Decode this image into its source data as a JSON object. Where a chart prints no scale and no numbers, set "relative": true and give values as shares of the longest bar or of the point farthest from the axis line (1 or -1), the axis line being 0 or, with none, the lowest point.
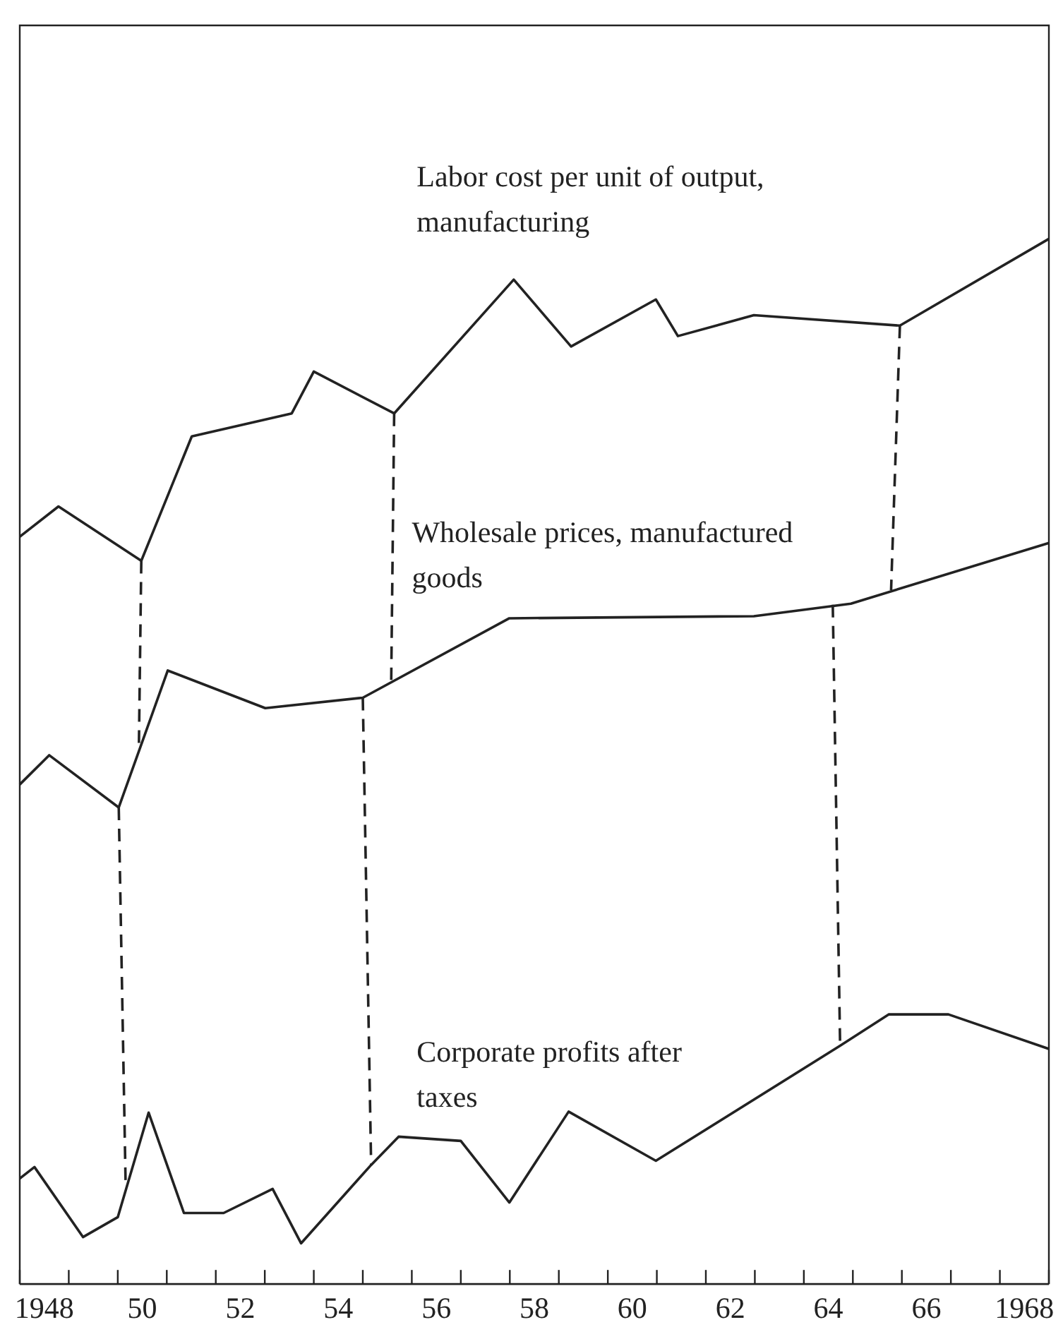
{
  "chart_data": {
    "type": "line",
    "relative": true,
    "xlim": [
      1947.5,
      1968.5
    ],
    "xticks": [
      {
        "value": 1947.5,
        "label": null
      },
      {
        "value": 1948.5,
        "label": null
      },
      {
        "value": 1949.5,
        "label": null
      },
      {
        "value": 1950.5,
        "label": null
      },
      {
        "value": 1951.5,
        "label": null
      },
      {
        "value": 1952.5,
        "label": null
      },
      {
        "value": 1953.5,
        "label": null
      },
      {
        "value": 1954.5,
        "label": null
      },
      {
        "value": 1955.5,
        "label": null
      },
      {
        "value": 1956.5,
        "label": null
      },
      {
        "value": 1957.5,
        "label": null
      },
      {
        "value": 1958.5,
        "label": null
      },
      {
        "value": 1959.5,
        "label": null
      },
      {
        "value": 1960.5,
        "label": null
      },
      {
        "value": 1961.5,
        "label": null
      },
      {
        "value": 1962.5,
        "label": null
      },
      {
        "value": 1963.5,
        "label": null
      },
      {
        "value": 1964.5,
        "label": null
      },
      {
        "value": 1965.5,
        "label": null
      },
      {
        "value": 1966.5,
        "label": null
      },
      {
        "value": 1967.5,
        "label": null
      },
      {
        "value": 1968.5,
        "label": null
      },
      {
        "value": 1948,
        "label": "1948"
      },
      {
        "value": 1950,
        "label": "50"
      },
      {
        "value": 1952,
        "label": "52"
      },
      {
        "value": 1954,
        "label": "54"
      },
      {
        "value": 1956,
        "label": "56"
      },
      {
        "value": 1958,
        "label": "58"
      },
      {
        "value": 1960,
        "label": "60"
      },
      {
        "value": 1962,
        "label": "62"
      },
      {
        "value": 1964,
        "label": "64"
      },
      {
        "value": 1966,
        "label": "66"
      },
      {
        "value": 1968,
        "label": "1968"
      }
    ],
    "grid": false,
    "marker": "none",
    "line_style": "solid",
    "series": [
      {
        "name": "Labor cost per unit of output, manufacturing",
        "color": "#222222",
        "x": [
          1947.5,
          1948.29,
          1949.98,
          1951.01,
          1953.05,
          1953.5,
          1955.14,
          1957.58,
          1958.75,
          1960.48,
          1960.93,
          1962.48,
          1965.46,
          1968.5
        ],
        "values": [
          0.715,
          0.744,
          0.692,
          0.811,
          0.833,
          0.873,
          0.833,
          0.961,
          0.897,
          0.942,
          0.907,
          0.927,
          0.917,
          1
        ]
      },
      {
        "name": "Wholesale prices, manufactured goods",
        "color": "#222222",
        "x": [
          1947.5,
          1948.1,
          1949.52,
          1950.52,
          1952.51,
          1954.5,
          1957.49,
          1962.48,
          1964.46,
          1968.5
        ],
        "values": [
          0.478,
          0.506,
          0.456,
          0.587,
          0.551,
          0.561,
          0.637,
          0.639,
          0.651,
          0.709
        ]
      },
      {
        "name": "Corporate profits after taxes",
        "color": "#222222",
        "x": [
          1947.5,
          1947.8,
          1948.79,
          1949.5,
          1950.13,
          1950.85,
          1951.66,
          1952.66,
          1953.24,
          1954.67,
          1955.23,
          1956.5,
          1957.49,
          1958.7,
          1960.48,
          1964.24,
          1965.23,
          1966.45,
          1968.5
        ],
        "values": [
          0.101,
          0.112,
          0.045,
          0.064,
          0.164,
          0.068,
          0.068,
          0.091,
          0.039,
          0.114,
          0.141,
          0.137,
          0.078,
          0.165,
          0.118,
          0.228,
          0.258,
          0.258,
          0.225
        ]
      },
      {
        "type": "line",
        "line_style": "dashed",
        "color": "#222222",
        "x": [
          1949.98,
          1949.93
        ],
        "values": [
          0.692,
          0.511
        ]
      },
      {
        "type": "line",
        "line_style": "dashed",
        "color": "#222222",
        "x": [
          1955.14,
          1955.08
        ],
        "values": [
          0.833,
          0.578
        ]
      },
      {
        "type": "line",
        "line_style": "dashed",
        "color": "#222222",
        "x": [
          1965.46,
          1965.28
        ],
        "values": [
          0.917,
          0.664
        ]
      },
      {
        "type": "line",
        "line_style": "dashed",
        "color": "#222222",
        "x": [
          1949.52,
          1949.66
        ],
        "values": [
          0.456,
          0.096
        ]
      },
      {
        "type": "line",
        "line_style": "dashed",
        "color": "#222222",
        "x": [
          1954.5,
          1954.67
        ],
        "values": [
          0.561,
          0.114
        ]
      },
      {
        "type": "line",
        "line_style": "dashed",
        "color": "#222222",
        "x": [
          1964.09,
          1964.24
        ],
        "values": [
          0.65,
          0.228
        ]
      }
    ]
  }
}
